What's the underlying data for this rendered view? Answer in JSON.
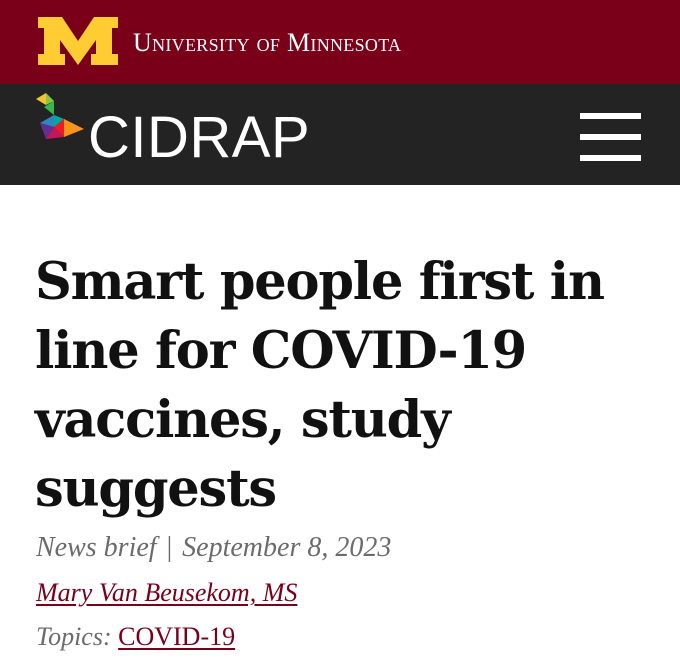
{
  "colors": {
    "maroon": "#7a0019",
    "gold": "#ffcc33",
    "dark_bar": "#232323",
    "text": "#111111",
    "muted": "#6b6b6b"
  },
  "header": {
    "logo_icon": "university-m-logo",
    "university_name": "University of Minnesota"
  },
  "nav": {
    "brand_icon": "cidrap-logo-mark",
    "brand_name": "CIDRAP",
    "menu_icon": "hamburger-menu-icon"
  },
  "article": {
    "title": "Smart people first in line for COVID-19 vaccines, study suggests",
    "type": "News brief",
    "separator": "|",
    "date": "September 8, 2023",
    "author": "Mary Van Beusekom, MS",
    "topics_label": "Topics:",
    "topic": "COVID-19"
  }
}
